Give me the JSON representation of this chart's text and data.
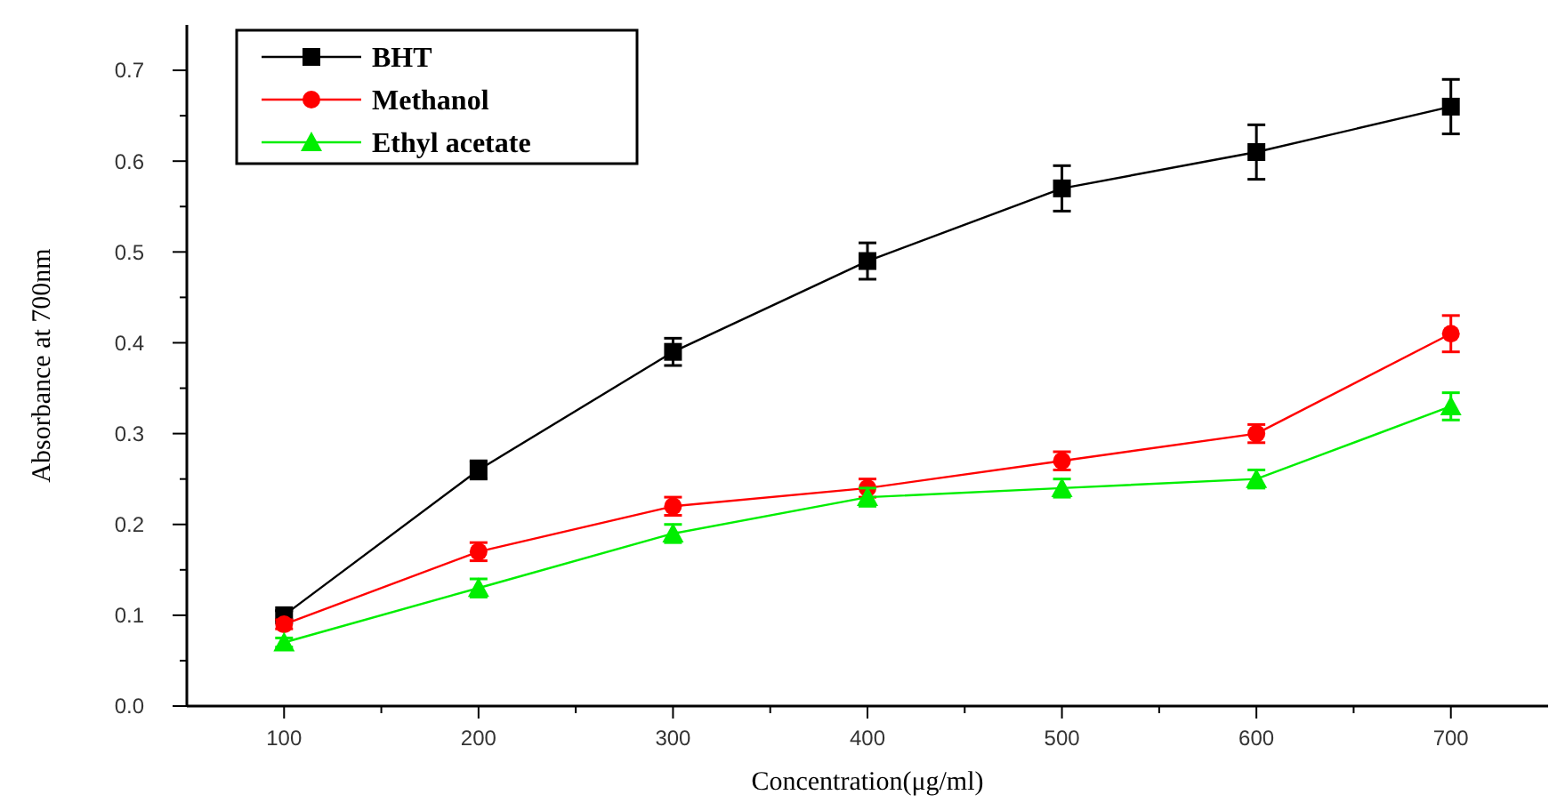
{
  "chart_data": {
    "type": "line",
    "xlabel": "Concentration(μg/ml)",
    "ylabel": "Absorbance at 700nm",
    "x": [
      100,
      200,
      300,
      400,
      500,
      600,
      700
    ],
    "xlim": [
      50,
      750
    ],
    "xticks": [
      100,
      200,
      300,
      400,
      500,
      600,
      700
    ],
    "ylim": [
      0,
      0.75
    ],
    "yticks": [
      {
        "value": 0,
        "label": "0.0"
      },
      0.1,
      0.2,
      0.3,
      0.4,
      0.5,
      0.6,
      0.7
    ],
    "legend": "top left",
    "grid": false,
    "series": [
      {
        "name": "BHT",
        "color": "#000000",
        "marker": "square",
        "values": [
          0.1,
          0.26,
          0.39,
          0.49,
          0.57,
          0.61,
          0.66
        ],
        "errors": [
          0.005,
          0.01,
          0.015,
          0.02,
          0.025,
          0.03,
          0.03
        ]
      },
      {
        "name": "Methanol",
        "color": "#ff0000",
        "marker": "circle",
        "values": [
          0.09,
          0.17,
          0.22,
          0.24,
          0.27,
          0.3,
          0.41
        ],
        "errors": [
          0.005,
          0.01,
          0.01,
          0.01,
          0.01,
          0.01,
          0.02
        ]
      },
      {
        "name": "Ethyl acetate",
        "color": "#00ee00",
        "marker": "triangle",
        "values": [
          0.07,
          0.13,
          0.19,
          0.23,
          0.24,
          0.25,
          0.33
        ],
        "errors": [
          0.005,
          0.01,
          0.01,
          0.01,
          0.01,
          0.01,
          0.015
        ]
      }
    ]
  }
}
